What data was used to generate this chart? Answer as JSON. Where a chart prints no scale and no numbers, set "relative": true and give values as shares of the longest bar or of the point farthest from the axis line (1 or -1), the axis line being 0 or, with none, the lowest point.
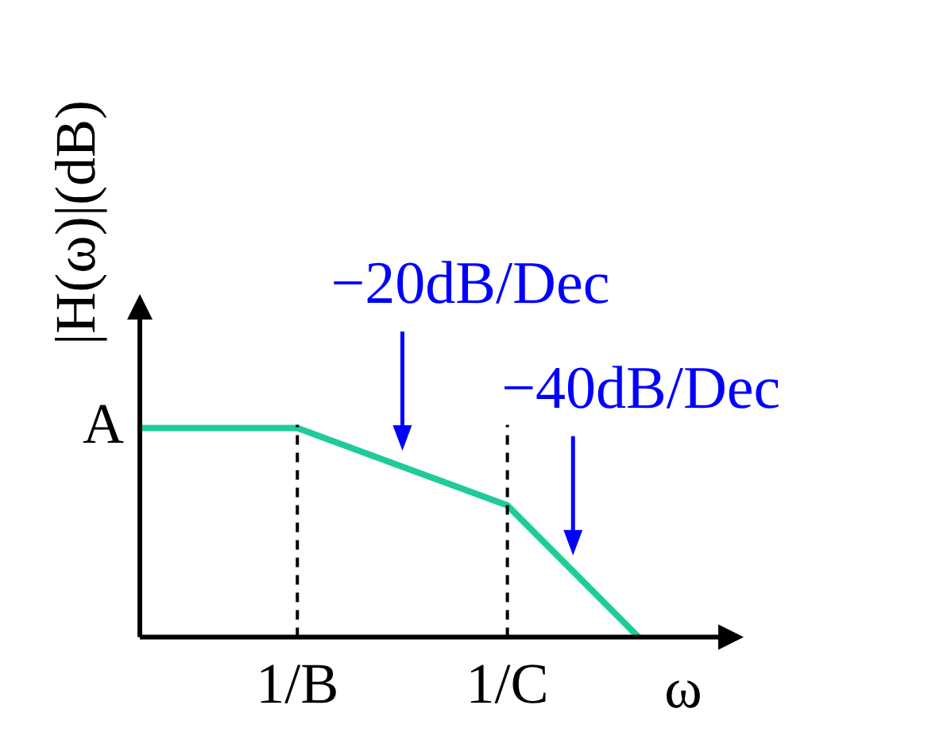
{
  "chart_data": {
    "type": "line",
    "relative": true,
    "xlabel": "ω",
    "ylabel": "|H(ω)|(dB)",
    "categories": [
      null,
      null,
      null,
      null,
      null,
      null,
      "1/B",
      null,
      null,
      null,
      null,
      null,
      null,
      null,
      "1/C",
      null,
      null,
      null,
      null,
      null,
      null,
      null,
      null,
      null
    ],
    "series": [
      {
        "color": "#1fcc99",
        "values": [
          1,
          null,
          null,
          null,
          null,
          null,
          1,
          null,
          null,
          null,
          null,
          null,
          null,
          null,
          0.63,
          null,
          null,
          null,
          null,
          0,
          null,
          null,
          null,
          null
        ]
      }
    ],
    "ref_lines": [
      {
        "axis": "x",
        "value": "1/B",
        "line_style": "dashed",
        "color": "#000000"
      },
      {
        "axis": "x",
        "value": "1/C",
        "line_style": "dashed",
        "color": "#000000"
      }
    ],
    "annotations": [
      "A",
      "−20dB/Dec",
      "−40dB/Dec"
    ],
    "grid": false,
    "legend": false,
    "marker": "none",
    "line_style": "solid"
  }
}
